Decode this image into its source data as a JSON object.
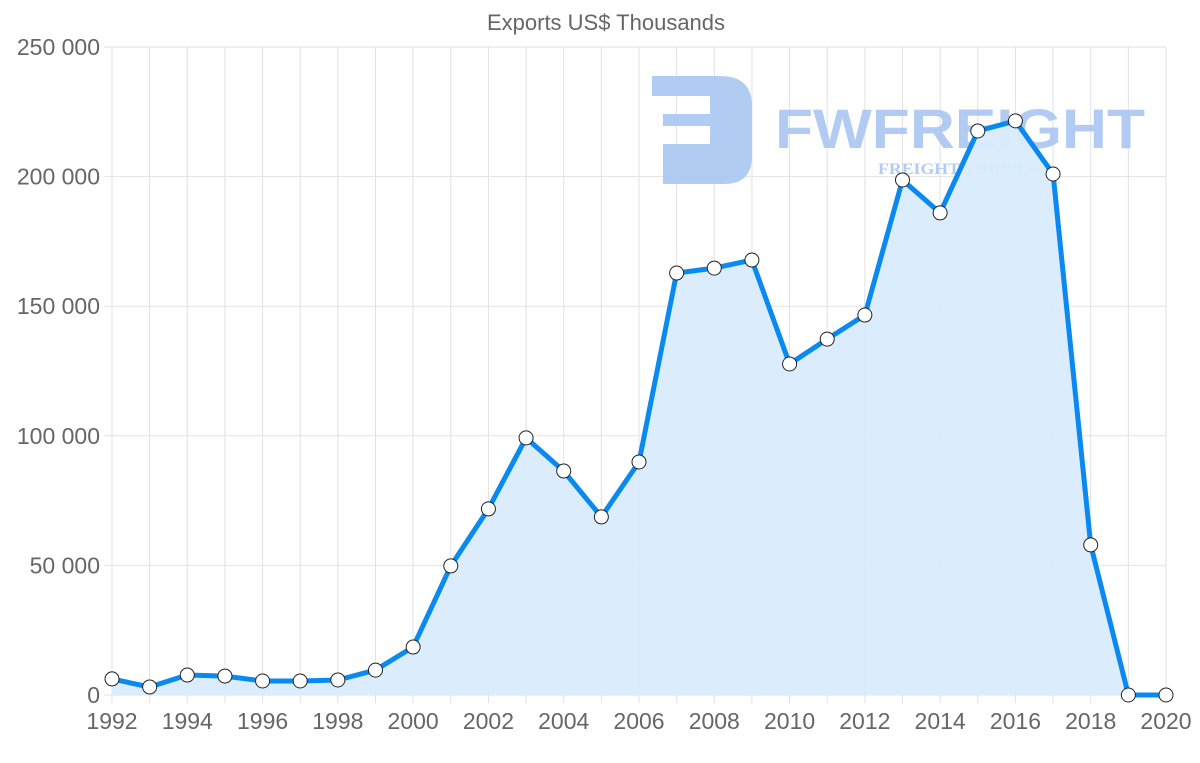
{
  "chart_data": {
    "type": "area",
    "title": "Exports US$ Thousands",
    "xlabel": "",
    "ylabel": "",
    "ylim": [
      0,
      250000
    ],
    "yticks": [
      0,
      50000,
      100000,
      150000,
      200000,
      250000
    ],
    "ytick_labels": [
      "0",
      "50 000",
      "100 000",
      "150 000",
      "200 000",
      "250 000"
    ],
    "xticks": [
      1992,
      1994,
      1996,
      1998,
      2000,
      2002,
      2004,
      2006,
      2008,
      2010,
      2012,
      2014,
      2016,
      2018,
      2020
    ],
    "grid": true,
    "legend": null,
    "x": [
      1992,
      1993,
      1994,
      1995,
      1996,
      1997,
      1998,
      1999,
      2000,
      2001,
      2002,
      2003,
      2004,
      2005,
      2006,
      2007,
      2008,
      2009,
      2010,
      2011,
      2012,
      2013,
      2014,
      2015,
      2016,
      2017,
      2018,
      2019,
      2020
    ],
    "series": [
      {
        "name": "Exports US$ Thousands",
        "values": [
          6200,
          3100,
          7700,
          7300,
          5400,
          5400,
          5800,
          9600,
          18500,
          49800,
          71800,
          99200,
          86400,
          68700,
          89900,
          162800,
          164700,
          167800,
          127700,
          137300,
          146600,
          198700,
          186000,
          217600,
          221500,
          201000,
          57900,
          0,
          0
        ]
      }
    ]
  },
  "colors": {
    "line": "#0a8af0",
    "fill": "#d9ecfd",
    "grid": "#e2e2e2",
    "text": "#666666",
    "marker_fill": "#ffffff",
    "marker_stroke": "#222222",
    "watermark": "#a9c6f2"
  },
  "watermark": {
    "brand": "FWFREIGHT",
    "tagline": "FREIGHT SHIPPING",
    "logo_icon": "fw-logo-icon"
  }
}
